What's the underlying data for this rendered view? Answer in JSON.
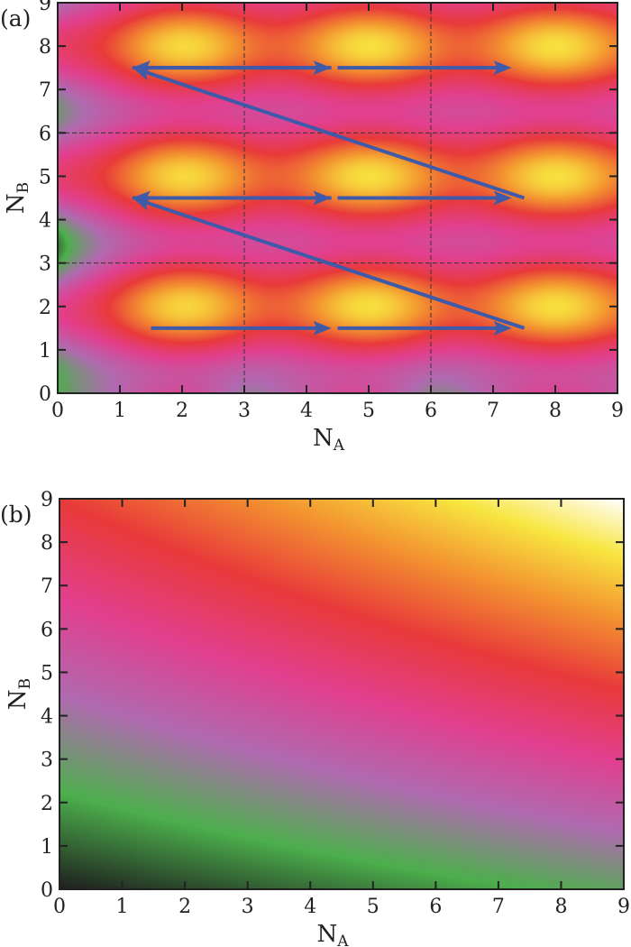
{
  "chart_data": [
    {
      "type": "heatmap",
      "panel_label": "(a)",
      "xlabel": "N",
      "xlabel_sub": "A",
      "ylabel": "N",
      "ylabel_sub": "B",
      "xlim": [
        0,
        9
      ],
      "ylim": [
        0,
        9
      ],
      "xticks": [
        "0",
        "1",
        "2",
        "3",
        "4",
        "5",
        "6",
        "7",
        "8",
        "9"
      ],
      "yticks": [
        "0",
        "1",
        "2",
        "3",
        "4",
        "5",
        "6",
        "7",
        "8",
        "9"
      ],
      "colormap": [
        "#1e1e1e",
        "#4caf4c",
        "#b06ab0",
        "#e23f8e",
        "#e83a3a",
        "#f39530",
        "#f8e640",
        "#ffffff"
      ],
      "maxima": [
        [
          2,
          2
        ],
        [
          5,
          2
        ],
        [
          8,
          2
        ],
        [
          2,
          5
        ],
        [
          5,
          5
        ],
        [
          8,
          5
        ],
        [
          2,
          8
        ],
        [
          5,
          8
        ],
        [
          8,
          8
        ]
      ],
      "minimum": [
        0,
        3
      ],
      "dashed_lines": {
        "x": [
          3,
          6
        ],
        "y": [
          3,
          6
        ]
      },
      "arrow_color": "#3f5aa8",
      "arrows": [
        {
          "from": [
            1.5,
            1.5
          ],
          "to": [
            4.4,
            1.5
          ]
        },
        {
          "from": [
            4.5,
            1.5
          ],
          "to": [
            7.3,
            1.5
          ]
        },
        {
          "from": [
            7.5,
            1.5
          ],
          "to": [
            1.2,
            4.5
          ]
        },
        {
          "from": [
            4.5,
            4.5
          ],
          "to": [
            1.2,
            4.5
          ],
          "double": true,
          "to2": [
            4.4,
            4.5
          ]
        },
        {
          "from": [
            4.5,
            4.5
          ],
          "to": [
            7.3,
            4.5
          ]
        },
        {
          "from": [
            7.5,
            4.5
          ],
          "to": [
            1.2,
            7.5
          ]
        },
        {
          "from": [
            4.5,
            7.5
          ],
          "to": [
            1.2,
            7.5
          ],
          "double": true,
          "to2": [
            4.4,
            7.5
          ]
        },
        {
          "from": [
            4.5,
            7.5
          ],
          "to": [
            7.3,
            7.5
          ]
        }
      ]
    },
    {
      "type": "heatmap",
      "panel_label": "(b)",
      "xlabel": "N",
      "xlabel_sub": "A",
      "ylabel": "N",
      "ylabel_sub": "B",
      "xlim": [
        0,
        9
      ],
      "ylim": [
        0,
        9
      ],
      "xticks": [
        "0",
        "1",
        "2",
        "3",
        "4",
        "5",
        "6",
        "7",
        "8",
        "9"
      ],
      "yticks": [
        "0",
        "1",
        "2",
        "3",
        "4",
        "5",
        "6",
        "7",
        "8",
        "9"
      ],
      "colormap": [
        "#1e1e1e",
        "#4caf4c",
        "#b06ab0",
        "#e23f8e",
        "#e83a3a",
        "#f39530",
        "#f8e640",
        "#ffffff"
      ],
      "minimum": [
        0,
        0
      ],
      "maximum": [
        9,
        9
      ]
    }
  ]
}
